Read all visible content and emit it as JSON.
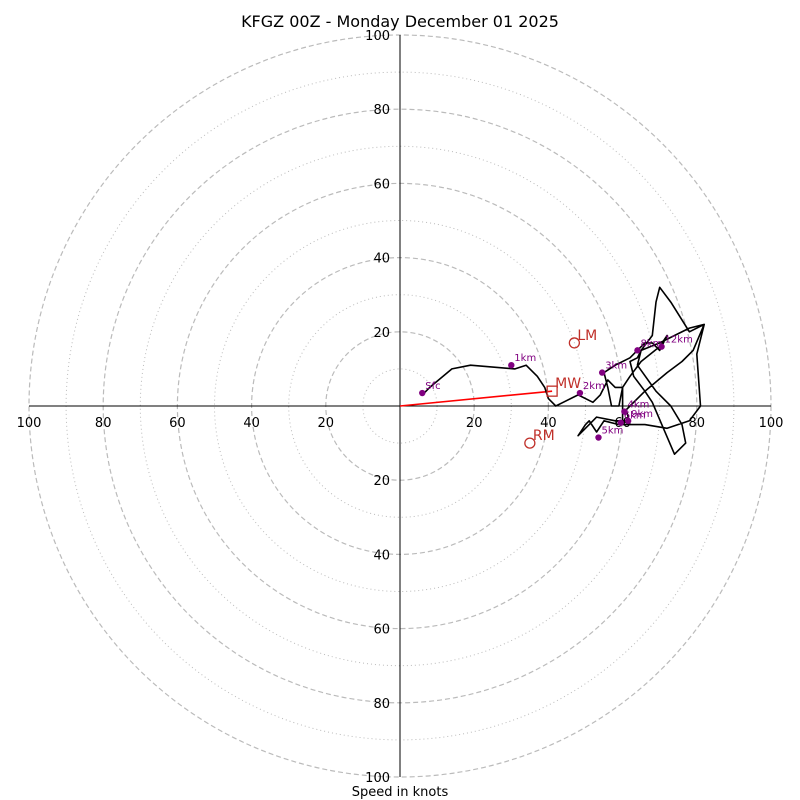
{
  "chart_data": {
    "type": "hodograph",
    "title": "KFGZ 00Z - Monday December 01 2025",
    "xlabel": "Speed in knots",
    "ring_values_major": [
      20,
      40,
      60,
      80,
      100
    ],
    "ring_values_minor": [
      10,
      30,
      50,
      70,
      90
    ],
    "tick_labels": [
      "20",
      "40",
      "60",
      "80",
      "100"
    ],
    "max_speed": 100,
    "hodograph_line": [
      [
        6,
        3
      ],
      [
        8,
        5
      ],
      [
        14,
        10
      ],
      [
        19,
        11
      ],
      [
        31,
        10
      ],
      [
        34,
        11
      ],
      [
        37,
        8
      ],
      [
        39,
        5
      ],
      [
        40,
        2
      ],
      [
        42,
        0
      ],
      [
        44,
        1
      ],
      [
        48,
        3
      ],
      [
        52,
        1
      ],
      [
        54,
        3
      ],
      [
        56,
        7
      ],
      [
        58,
        5
      ],
      [
        60,
        5
      ],
      [
        59,
        0
      ],
      [
        57,
        0
      ],
      [
        56,
        5
      ],
      [
        55,
        9
      ],
      [
        58,
        11
      ],
      [
        62,
        13
      ],
      [
        66,
        17
      ],
      [
        68,
        17
      ],
      [
        70,
        15
      ],
      [
        72,
        19
      ],
      [
        70,
        16
      ],
      [
        65,
        12
      ],
      [
        62,
        8
      ],
      [
        60,
        5
      ],
      [
        60,
        -4
      ],
      [
        62,
        -5
      ],
      [
        61,
        -1
      ],
      [
        62,
        0
      ],
      [
        66,
        4
      ],
      [
        72,
        9
      ],
      [
        76,
        12
      ],
      [
        79,
        15
      ],
      [
        82,
        22
      ],
      [
        78,
        20
      ],
      [
        73,
        28
      ],
      [
        70,
        32
      ],
      [
        69,
        28
      ],
      [
        68,
        19
      ],
      [
        65,
        15
      ],
      [
        64,
        11
      ],
      [
        69,
        4
      ],
      [
        73,
        0
      ],
      [
        76,
        -5
      ],
      [
        77,
        -10
      ],
      [
        74,
        -13
      ],
      [
        71,
        -6
      ],
      [
        68,
        1
      ],
      [
        66,
        4
      ],
      [
        63,
        8
      ],
      [
        62,
        12
      ],
      [
        64,
        13
      ],
      [
        65,
        15
      ],
      [
        70,
        17
      ],
      [
        74,
        19
      ],
      [
        78,
        21
      ],
      [
        82,
        22
      ],
      [
        80,
        14
      ],
      [
        81,
        0
      ],
      [
        78,
        -4
      ],
      [
        72,
        -6
      ],
      [
        66,
        -5
      ],
      [
        62,
        -5
      ],
      [
        59,
        -5
      ],
      [
        55,
        -4
      ],
      [
        53,
        -7
      ],
      [
        51,
        -4
      ],
      [
        50,
        -5
      ],
      [
        48,
        -8
      ],
      [
        51,
        -5
      ],
      [
        53,
        -3
      ],
      [
        58,
        -4
      ],
      [
        62,
        -4
      ]
    ],
    "height_markers": [
      {
        "label": "Sfc",
        "u": 6,
        "v": 3.5
      },
      {
        "label": "1km",
        "u": 30,
        "v": 11
      },
      {
        "label": "2km",
        "u": 48.5,
        "v": 3.5
      },
      {
        "label": "3km",
        "u": 54.5,
        "v": 9
      },
      {
        "label": "4km",
        "u": 60.5,
        "v": -1.5
      },
      {
        "label": "5km",
        "u": 53.5,
        "v": -8.5
      },
      {
        "label": "6km",
        "u": 59.5,
        "v": -4.5
      },
      {
        "label": "8km",
        "u": 64,
        "v": 15
      },
      {
        "label": "9km",
        "u": 61.5,
        "v": -4
      },
      {
        "label": "12km",
        "u": 70.5,
        "v": 16
      }
    ],
    "storm_motion": {
      "LM": {
        "label": "LM",
        "u": 47,
        "v": 17
      },
      "RM": {
        "label": "RM",
        "u": 35,
        "v": -10
      },
      "MW": {
        "label": "MW",
        "u": 41,
        "v": 4
      }
    },
    "bunkers_vector": {
      "from": [
        0,
        0
      ],
      "to": [
        41,
        4
      ]
    },
    "colors": {
      "line": "#000000",
      "markers": "#800080",
      "storm": "#c0302a",
      "vector": "#ff0000",
      "grid": "#bbbbbb"
    }
  }
}
